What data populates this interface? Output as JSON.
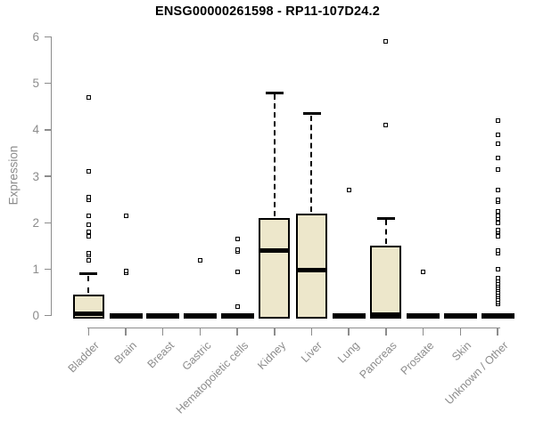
{
  "chart_data": {
    "type": "boxplot",
    "title": "ENSG00000261598 - RP11-107D24.2",
    "ylabel": "Expression",
    "xlabel": "",
    "ylim": [
      0,
      6
    ],
    "yticks": [
      0,
      1,
      2,
      3,
      4,
      5,
      6
    ],
    "grid": false,
    "legend": "none",
    "categories": [
      "Bladder",
      "Brain",
      "Breast",
      "Gastric",
      "Hematopoietic cells",
      "Kidney",
      "Liver",
      "Lung",
      "Pancreas",
      "Prostate",
      "Skin",
      "Unknown / Other"
    ],
    "boxes": [
      {
        "category": "Bladder",
        "q1": 0,
        "median": 0.05,
        "q3": 0.45,
        "whisker_low": 0,
        "whisker_high": 0.9,
        "outliers": [
          1.2,
          1.3,
          1.35,
          1.7,
          1.8,
          1.95,
          2.15,
          2.5,
          2.55,
          3.1,
          4.7
        ]
      },
      {
        "category": "Brain",
        "q1": 0,
        "median": 0,
        "q3": 0,
        "whisker_low": 0,
        "whisker_high": 0,
        "outliers": [
          0.93,
          0.97,
          2.15
        ]
      },
      {
        "category": "Breast",
        "q1": 0,
        "median": 0,
        "q3": 0,
        "whisker_low": 0,
        "whisker_high": 0,
        "outliers": []
      },
      {
        "category": "Gastric",
        "q1": 0,
        "median": 0,
        "q3": 0,
        "whisker_low": 0,
        "whisker_high": 0,
        "outliers": [
          1.2
        ]
      },
      {
        "category": "Hematopoietic cells",
        "q1": 0,
        "median": 0,
        "q3": 0,
        "whisker_low": 0,
        "whisker_high": 0,
        "outliers": [
          0.2,
          0.95,
          1.38,
          1.42,
          1.65
        ]
      },
      {
        "category": "Kidney",
        "q1": 0,
        "median": 1.4,
        "q3": 2.1,
        "whisker_low": 0,
        "whisker_high": 4.8,
        "outliers": []
      },
      {
        "category": "Liver",
        "q1": 0,
        "median": 0.98,
        "q3": 2.2,
        "whisker_low": 0,
        "whisker_high": 4.35,
        "outliers": []
      },
      {
        "category": "Lung",
        "q1": 0,
        "median": 0,
        "q3": 0,
        "whisker_low": 0,
        "whisker_high": 0,
        "outliers": [
          2.7
        ]
      },
      {
        "category": "Pancreas",
        "q1": 0,
        "median": 0.03,
        "q3": 1.5,
        "whisker_low": 0,
        "whisker_high": 2.1,
        "outliers": [
          4.1,
          5.9
        ]
      },
      {
        "category": "Prostate",
        "q1": 0,
        "median": 0,
        "q3": 0,
        "whisker_low": 0,
        "whisker_high": 0,
        "outliers": [
          0.95
        ]
      },
      {
        "category": "Skin",
        "q1": 0,
        "median": 0,
        "q3": 0,
        "whisker_low": 0,
        "whisker_high": 0,
        "outliers": []
      },
      {
        "category": "Unknown / Other",
        "q1": 0,
        "median": 0,
        "q3": 0,
        "whisker_low": 0,
        "whisker_high": 0,
        "outliers": [
          0.25,
          0.3,
          0.35,
          0.4,
          0.45,
          0.5,
          0.55,
          0.6,
          0.65,
          0.7,
          0.75,
          0.8,
          1.0,
          1.35,
          1.4,
          1.7,
          1.8,
          1.85,
          2.0,
          2.1,
          2.15,
          2.25,
          2.45,
          2.5,
          2.7,
          3.15,
          3.4,
          3.7,
          3.9,
          4.2
        ]
      }
    ],
    "colors": {
      "box_fill": "#ede7cb",
      "box_border": "#000000",
      "median": "#000000",
      "axis": "#8c8c8c",
      "title": "#000000",
      "outlier_fill": "#ffffff"
    }
  }
}
